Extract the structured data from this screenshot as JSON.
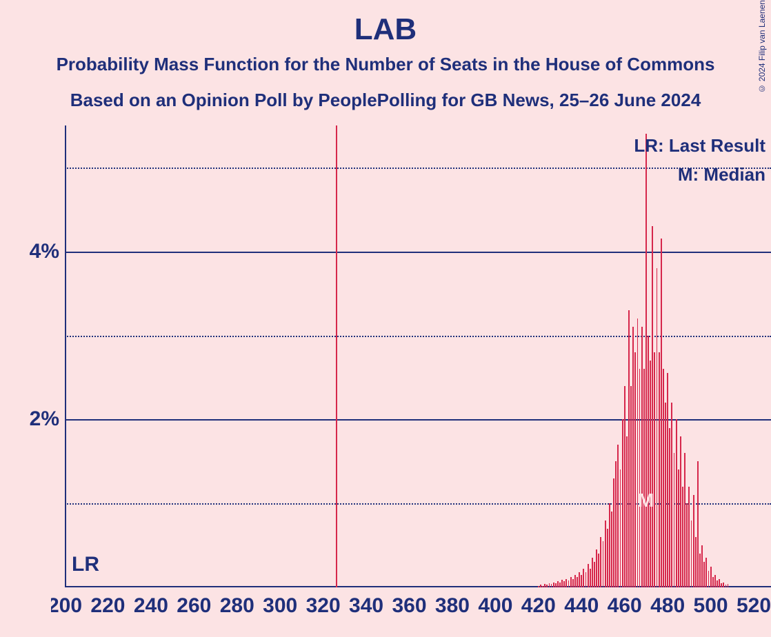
{
  "title": "LAB",
  "subtitle1": "Probability Mass Function for the Number of Seats in the House of Commons",
  "subtitle2": "Based on an Opinion Poll by PeoplePolling for GB News, 25–26 June 2024",
  "copyright": "© 2024 Filip van Laenen",
  "background_color": "#fce3e4",
  "text_color": "#1f2f7a",
  "bar_color": "#d6274b",
  "chart": {
    "x_min": 200,
    "x_max": 528,
    "y_min": 0,
    "y_max": 5.5,
    "x_ticks": [
      200,
      220,
      240,
      260,
      280,
      300,
      320,
      340,
      360,
      380,
      400,
      420,
      440,
      460,
      480,
      500,
      520
    ],
    "y_major_ticks": [
      2,
      4
    ],
    "y_minor_ticks": [
      1,
      3,
      5
    ],
    "y_tick_labels": {
      "2": "2%",
      "4": "4%"
    },
    "last_result_x": 326,
    "median_x": 470,
    "lr_label": "LR",
    "median_marker": "M",
    "legend_lr": "LR: Last Result",
    "legend_m": "M: Median",
    "bars": [
      {
        "x": 420,
        "y": 0.02
      },
      {
        "x": 421,
        "y": 0.03
      },
      {
        "x": 422,
        "y": 0.02
      },
      {
        "x": 423,
        "y": 0.04
      },
      {
        "x": 424,
        "y": 0.03
      },
      {
        "x": 425,
        "y": 0.05
      },
      {
        "x": 426,
        "y": 0.04
      },
      {
        "x": 427,
        "y": 0.06
      },
      {
        "x": 428,
        "y": 0.05
      },
      {
        "x": 429,
        "y": 0.07
      },
      {
        "x": 430,
        "y": 0.06
      },
      {
        "x": 431,
        "y": 0.09
      },
      {
        "x": 432,
        "y": 0.07
      },
      {
        "x": 433,
        "y": 0.1
      },
      {
        "x": 434,
        "y": 0.08
      },
      {
        "x": 435,
        "y": 0.12
      },
      {
        "x": 436,
        "y": 0.1
      },
      {
        "x": 437,
        "y": 0.15
      },
      {
        "x": 438,
        "y": 0.12
      },
      {
        "x": 439,
        "y": 0.18
      },
      {
        "x": 440,
        "y": 0.15
      },
      {
        "x": 441,
        "y": 0.22
      },
      {
        "x": 442,
        "y": 0.18
      },
      {
        "x": 443,
        "y": 0.28
      },
      {
        "x": 444,
        "y": 0.22
      },
      {
        "x": 445,
        "y": 0.35
      },
      {
        "x": 446,
        "y": 0.3
      },
      {
        "x": 447,
        "y": 0.45
      },
      {
        "x": 448,
        "y": 0.4
      },
      {
        "x": 449,
        "y": 0.6
      },
      {
        "x": 450,
        "y": 0.55
      },
      {
        "x": 451,
        "y": 0.8
      },
      {
        "x": 452,
        "y": 0.7
      },
      {
        "x": 453,
        "y": 1.0
      },
      {
        "x": 454,
        "y": 0.9
      },
      {
        "x": 455,
        "y": 1.3
      },
      {
        "x": 456,
        "y": 1.5
      },
      {
        "x": 457,
        "y": 1.7
      },
      {
        "x": 458,
        "y": 1.4
      },
      {
        "x": 459,
        "y": 2.0
      },
      {
        "x": 460,
        "y": 2.4
      },
      {
        "x": 461,
        "y": 1.8
      },
      {
        "x": 462,
        "y": 3.3
      },
      {
        "x": 463,
        "y": 2.4
      },
      {
        "x": 464,
        "y": 3.1
      },
      {
        "x": 465,
        "y": 2.8
      },
      {
        "x": 466,
        "y": 3.2
      },
      {
        "x": 467,
        "y": 2.6
      },
      {
        "x": 468,
        "y": 3.1
      },
      {
        "x": 469,
        "y": 2.6
      },
      {
        "x": 470,
        "y": 5.4
      },
      {
        "x": 471,
        "y": 3.0
      },
      {
        "x": 472,
        "y": 2.7
      },
      {
        "x": 473,
        "y": 4.3
      },
      {
        "x": 474,
        "y": 2.8
      },
      {
        "x": 475,
        "y": 3.8
      },
      {
        "x": 476,
        "y": 2.8
      },
      {
        "x": 477,
        "y": 4.15
      },
      {
        "x": 478,
        "y": 2.6
      },
      {
        "x": 479,
        "y": 2.2
      },
      {
        "x": 480,
        "y": 2.55
      },
      {
        "x": 481,
        "y": 1.9
      },
      {
        "x": 482,
        "y": 2.2
      },
      {
        "x": 483,
        "y": 1.6
      },
      {
        "x": 484,
        "y": 2.0
      },
      {
        "x": 485,
        "y": 1.4
      },
      {
        "x": 486,
        "y": 1.8
      },
      {
        "x": 487,
        "y": 1.2
      },
      {
        "x": 488,
        "y": 1.6
      },
      {
        "x": 489,
        "y": 1.0
      },
      {
        "x": 490,
        "y": 1.2
      },
      {
        "x": 491,
        "y": 0.8
      },
      {
        "x": 492,
        "y": 1.1
      },
      {
        "x": 493,
        "y": 0.6
      },
      {
        "x": 494,
        "y": 1.5
      },
      {
        "x": 495,
        "y": 0.4
      },
      {
        "x": 496,
        "y": 0.5
      },
      {
        "x": 497,
        "y": 0.3
      },
      {
        "x": 498,
        "y": 0.35
      },
      {
        "x": 499,
        "y": 0.2
      },
      {
        "x": 500,
        "y": 0.25
      },
      {
        "x": 501,
        "y": 0.12
      },
      {
        "x": 502,
        "y": 0.15
      },
      {
        "x": 503,
        "y": 0.08
      },
      {
        "x": 504,
        "y": 0.1
      },
      {
        "x": 505,
        "y": 0.05
      },
      {
        "x": 506,
        "y": 0.06
      },
      {
        "x": 507,
        "y": 0.03
      },
      {
        "x": 508,
        "y": 0.04
      }
    ],
    "bar_width_seats": 0.6
  }
}
